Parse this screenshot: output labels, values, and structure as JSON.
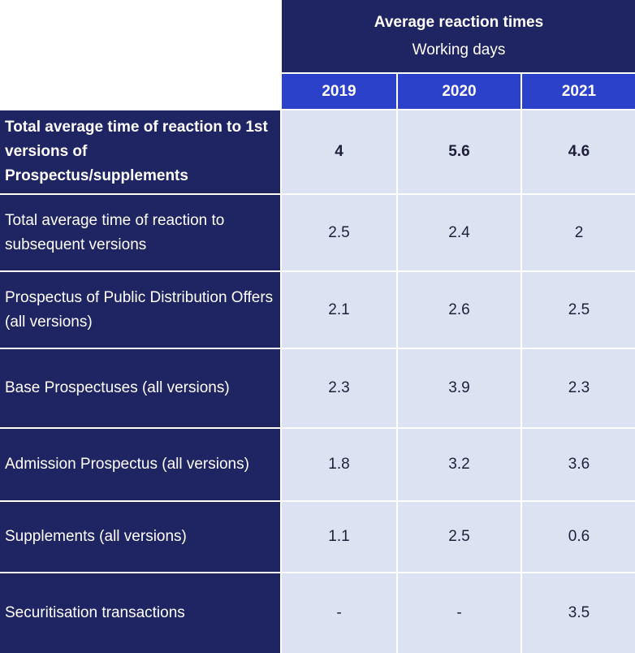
{
  "header": {
    "title": "Average reaction times",
    "subtitle": "Working days",
    "years": [
      "2019",
      "2020",
      "2021"
    ]
  },
  "rows": [
    {
      "label": "Total average time of reaction to 1st versions of Prospectus/supplements",
      "values": [
        "4",
        "5.6",
        "4.6"
      ],
      "bold": true
    },
    {
      "label": "Total average time of reaction to subsequent versions",
      "values": [
        "2.5",
        "2.4",
        "2"
      ]
    },
    {
      "label": "Prospectus of Public Distribution Offers (all versions)",
      "values": [
        "2.1",
        "2.6",
        "2.5"
      ]
    },
    {
      "label": "Base Prospectuses (all versions)",
      "values": [
        "2.3",
        "3.9",
        "2.3"
      ]
    },
    {
      "label": "Admission Prospectus (all versions)",
      "values": [
        "1.8",
        "3.2",
        "3.6"
      ]
    },
    {
      "label": "Supplements (all versions)",
      "values": [
        "1.1",
        "2.5",
        "0.6"
      ]
    },
    {
      "label": "Securitisation transactions",
      "values": [
        "-",
        "-",
        "3.5"
      ]
    }
  ],
  "colors": {
    "navy": "#1f2462",
    "accent_blue": "#2b41c9",
    "value_bg": "#dbe3f3"
  }
}
